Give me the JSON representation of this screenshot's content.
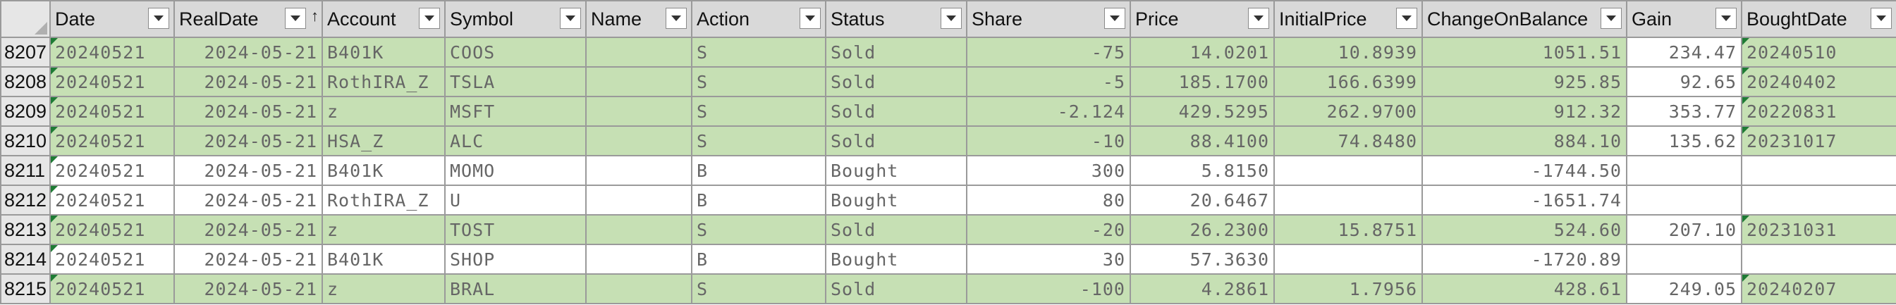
{
  "headers": [
    "Date",
    "RealDate",
    "Account",
    "Symbol",
    "Name",
    "Action",
    "Status",
    "Share",
    "Price",
    "InitialPrice",
    "ChangeOnBalance",
    "Gain",
    "BoughtDate"
  ],
  "rows": [
    {
      "num": "8207",
      "status_type": "sold",
      "cells": [
        "20240521",
        "2024-05-21",
        "B401K",
        "COOS",
        "",
        "S",
        "Sold",
        "-75",
        "14.0201",
        "10.8939",
        "1051.51",
        "234.47",
        "20240510"
      ]
    },
    {
      "num": "8208",
      "status_type": "sold",
      "cells": [
        "20240521",
        "2024-05-21",
        "RothIRA_Z",
        "TSLA",
        "",
        "S",
        "Sold",
        "-5",
        "185.1700",
        "166.6399",
        "925.85",
        "92.65",
        "20240402"
      ]
    },
    {
      "num": "8209",
      "status_type": "sold",
      "cells": [
        "20240521",
        "2024-05-21",
        "z",
        "MSFT",
        "",
        "S",
        "Sold",
        "-2.124",
        "429.5295",
        "262.9700",
        "912.32",
        "353.77",
        "20220831"
      ]
    },
    {
      "num": "8210",
      "status_type": "sold",
      "cells": [
        "20240521",
        "2024-05-21",
        "HSA_Z",
        "ALC",
        "",
        "S",
        "Sold",
        "-10",
        "88.4100",
        "74.8480",
        "884.10",
        "135.62",
        "20231017"
      ]
    },
    {
      "num": "8211",
      "status_type": "bought",
      "cells": [
        "20240521",
        "2024-05-21",
        "B401K",
        "MOMO",
        "",
        "B",
        "Bought",
        "300",
        "5.8150",
        "",
        "-1744.50",
        "",
        ""
      ]
    },
    {
      "num": "8212",
      "status_type": "bought",
      "cells": [
        "20240521",
        "2024-05-21",
        "RothIRA_Z",
        "U",
        "",
        "B",
        "Bought",
        "80",
        "20.6467",
        "",
        "-1651.74",
        "",
        ""
      ]
    },
    {
      "num": "8213",
      "status_type": "sold",
      "cells": [
        "20240521",
        "2024-05-21",
        "z",
        "TOST",
        "",
        "S",
        "Sold",
        "-20",
        "26.2300",
        "15.8751",
        "524.60",
        "207.10",
        "20231031"
      ]
    },
    {
      "num": "8214",
      "status_type": "bought",
      "cells": [
        "20240521",
        "2024-05-21",
        "B401K",
        "SHOP",
        "",
        "B",
        "Bought",
        "30",
        "57.3630",
        "",
        "-1720.89",
        "",
        ""
      ]
    },
    {
      "num": "8215",
      "status_type": "sold",
      "cells": [
        "20240521",
        "2024-05-21",
        "z",
        "BRAL",
        "",
        "S",
        "Sold",
        "-100",
        "4.2861",
        "1.7956",
        "428.61",
        "249.05",
        "20240207"
      ]
    }
  ],
  "colors": {
    "sold_fill": "#c6e0b4",
    "bought_fill": "#ffffff",
    "header_fill": "#d9d9d9",
    "grid": "#9a9a9a"
  }
}
